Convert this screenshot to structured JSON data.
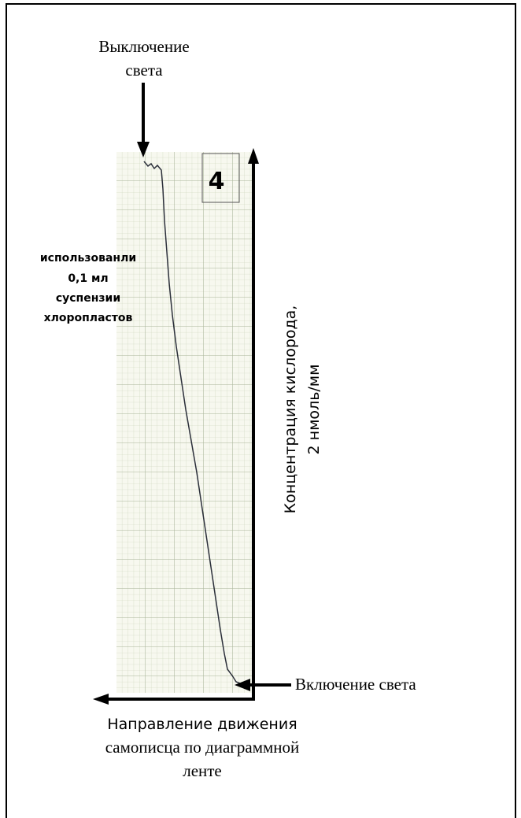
{
  "top_label": {
    "lines": [
      "Выключение",
      "света"
    ]
  },
  "panel_number": "4",
  "annotation": {
    "lines": [
      "использованли",
      "0,1 мл",
      "суспензии",
      "хлоропластов"
    ]
  },
  "axis_label": {
    "lines": [
      "Концентрация кислорода,",
      "2 нмоль/мм"
    ]
  },
  "right_label": "Включение света",
  "bottom_label": {
    "lines": [
      "Направление движения",
      "самописца по диаграммной",
      "ленте"
    ]
  }
}
